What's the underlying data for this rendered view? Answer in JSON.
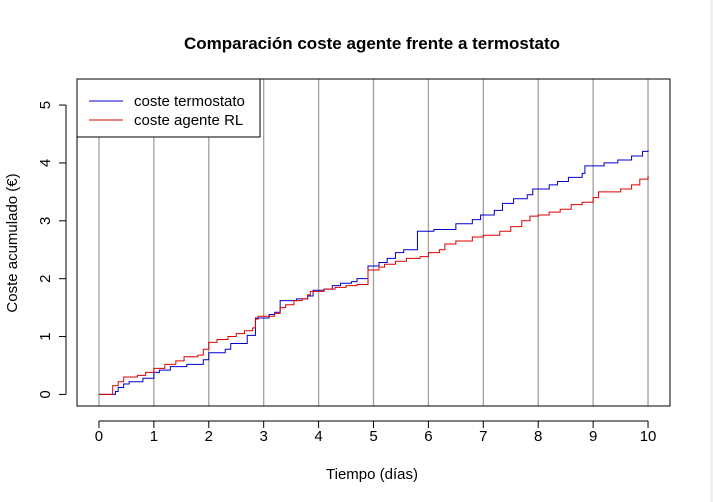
{
  "chart_data": {
    "type": "line",
    "title": "Comparación coste agente frente a termostato",
    "xlabel": "Tiempo (días)",
    "ylabel": "Coste acumulado (€)",
    "xlim": [
      -0.4,
      10.4
    ],
    "ylim": [
      -0.2,
      5.45
    ],
    "xticks": [
      "0",
      "1",
      "2",
      "3",
      "4",
      "5",
      "6",
      "7",
      "8",
      "9",
      "10"
    ],
    "yticks": [
      "0",
      "1",
      "2",
      "3",
      "4",
      "5"
    ],
    "grid": "vertical lines at each day",
    "legend_position": "top-left",
    "series": [
      {
        "name": "coste termostato",
        "color": "#0000cc",
        "step": true,
        "points": [
          [
            0,
            0
          ],
          [
            0.3,
            0
          ],
          [
            0.3,
            0.05
          ],
          [
            0.35,
            0.05
          ],
          [
            0.35,
            0.12
          ],
          [
            0.45,
            0.18
          ],
          [
            0.55,
            0.22
          ],
          [
            0.7,
            0.22
          ],
          [
            0.8,
            0.28
          ],
          [
            1,
            0.28
          ],
          [
            1,
            0.38
          ],
          [
            1.1,
            0.42
          ],
          [
            1.3,
            0.48
          ],
          [
            1.6,
            0.52
          ],
          [
            1.9,
            0.55
          ],
          [
            1.9,
            0.6
          ],
          [
            2,
            0.72
          ],
          [
            2.3,
            0.78
          ],
          [
            2.4,
            0.88
          ],
          [
            2.7,
            1.02
          ],
          [
            2.85,
            1.05
          ],
          [
            2.85,
            1.32
          ],
          [
            3.1,
            1.38
          ],
          [
            3.2,
            1.42
          ],
          [
            3.3,
            1.62
          ],
          [
            3.6,
            1.65
          ],
          [
            3.8,
            1.7
          ],
          [
            3.9,
            1.72
          ],
          [
            3.9,
            1.8
          ],
          [
            4.1,
            1.82
          ],
          [
            4.25,
            1.88
          ],
          [
            4.4,
            1.92
          ],
          [
            4.6,
            1.95
          ],
          [
            4.7,
            2
          ],
          [
            4.9,
            2.1
          ],
          [
            4.9,
            2.22
          ],
          [
            5.1,
            2.28
          ],
          [
            5.25,
            2.35
          ],
          [
            5.4,
            2.45
          ],
          [
            5.55,
            2.5
          ],
          [
            5.8,
            2.55
          ],
          [
            5.8,
            2.82
          ],
          [
            6.1,
            2.85
          ],
          [
            6.3,
            2.85
          ],
          [
            6.5,
            2.95
          ],
          [
            6.8,
            3.02
          ],
          [
            6.95,
            3.1
          ],
          [
            7.2,
            3.18
          ],
          [
            7.35,
            3.3
          ],
          [
            7.55,
            3.38
          ],
          [
            7.8,
            3.45
          ],
          [
            7.9,
            3.55
          ],
          [
            8.2,
            3.62
          ],
          [
            8.35,
            3.68
          ],
          [
            8.55,
            3.75
          ],
          [
            8.8,
            3.82
          ],
          [
            8.85,
            3.95
          ],
          [
            9.2,
            4.0
          ],
          [
            9.45,
            4.05
          ],
          [
            9.7,
            4.12
          ],
          [
            9.9,
            4.2
          ],
          [
            10,
            4.22
          ]
        ]
      },
      {
        "name": "coste agente RL",
        "color": "#dd0000",
        "step": true,
        "points": [
          [
            0,
            0
          ],
          [
            0.25,
            0
          ],
          [
            0.25,
            0.15
          ],
          [
            0.35,
            0.22
          ],
          [
            0.45,
            0.3
          ],
          [
            0.7,
            0.33
          ],
          [
            0.85,
            0.38
          ],
          [
            1,
            0.38
          ],
          [
            1,
            0.45
          ],
          [
            1.2,
            0.52
          ],
          [
            1.4,
            0.58
          ],
          [
            1.55,
            0.65
          ],
          [
            1.8,
            0.68
          ],
          [
            1.9,
            0.78
          ],
          [
            2,
            0.9
          ],
          [
            2.15,
            0.95
          ],
          [
            2.35,
            1
          ],
          [
            2.5,
            1.05
          ],
          [
            2.65,
            1.1
          ],
          [
            2.8,
            1.15
          ],
          [
            2.85,
            1.3
          ],
          [
            2.9,
            1.35
          ],
          [
            3.2,
            1.4
          ],
          [
            3.3,
            1.5
          ],
          [
            3.4,
            1.55
          ],
          [
            3.55,
            1.62
          ],
          [
            3.7,
            1.65
          ],
          [
            3.8,
            1.72
          ],
          [
            3.85,
            1.78
          ],
          [
            4.1,
            1.82
          ],
          [
            4.3,
            1.85
          ],
          [
            4.5,
            1.88
          ],
          [
            4.7,
            1.9
          ],
          [
            4.85,
            1.9
          ],
          [
            4.9,
            2.15
          ],
          [
            5.1,
            2.2
          ],
          [
            5.2,
            2.25
          ],
          [
            5.4,
            2.3
          ],
          [
            5.6,
            2.35
          ],
          [
            5.85,
            2.38
          ],
          [
            6,
            2.45
          ],
          [
            6.2,
            2.5
          ],
          [
            6.3,
            2.6
          ],
          [
            6.5,
            2.65
          ],
          [
            6.8,
            2.72
          ],
          [
            7,
            2.75
          ],
          [
            7.3,
            2.82
          ],
          [
            7.5,
            2.9
          ],
          [
            7.7,
            3.0
          ],
          [
            7.85,
            3.08
          ],
          [
            8,
            3.1
          ],
          [
            8.2,
            3.15
          ],
          [
            8.4,
            3.2
          ],
          [
            8.6,
            3.28
          ],
          [
            8.8,
            3.32
          ],
          [
            9,
            3.4
          ],
          [
            9.1,
            3.5
          ],
          [
            9.5,
            3.55
          ],
          [
            9.7,
            3.62
          ],
          [
            9.85,
            3.72
          ],
          [
            10,
            3.78
          ]
        ]
      }
    ]
  }
}
